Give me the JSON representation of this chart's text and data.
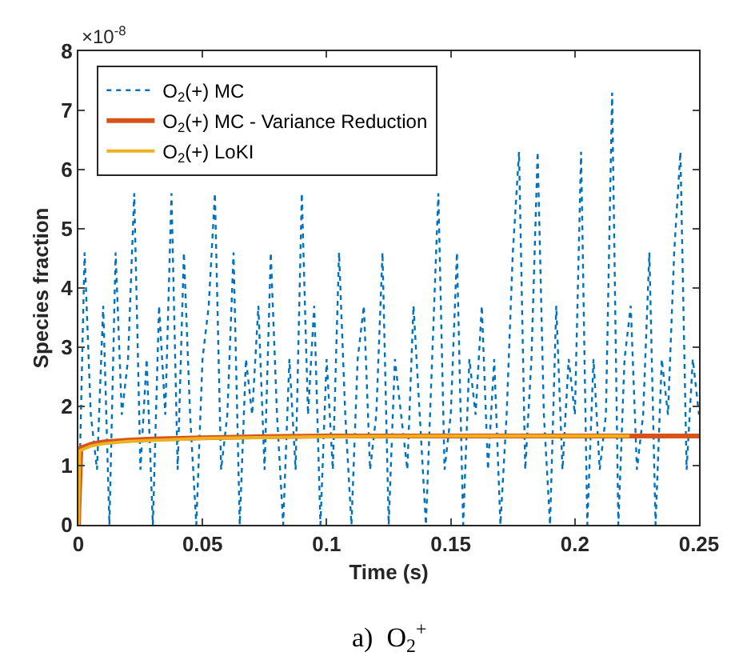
{
  "chart_data": {
    "type": "line",
    "xlabel": "Time (s)",
    "ylabel": "Species fraction",
    "xlim": [
      0,
      0.25
    ],
    "xticks": [
      0,
      0.05,
      0.1,
      0.15,
      0.2,
      0.25
    ],
    "ylim": [
      0,
      8
    ],
    "yticks": [
      0,
      1,
      2,
      3,
      4,
      5,
      6,
      7,
      8
    ],
    "grid": false,
    "legend": "top left",
    "marker": "none",
    "annotations": [
      "×10$^{-8}$",
      "a)  O$_{2}$$^{+}$"
    ],
    "series": [
      {
        "name": "O$_{2}$(+) MC",
        "color": "#0072bd",
        "line_style": "dotted",
        "x": [
          0,
          0.0025,
          0.005,
          0.0075,
          0.01,
          0.0125,
          0.015,
          0.0175,
          0.02,
          0.0225,
          0.025,
          0.0275,
          0.03,
          0.0325,
          0.035,
          0.0375,
          0.04,
          0.0425,
          0.045,
          0.0475,
          0.05,
          0.0525,
          0.055,
          0.0575,
          0.06,
          0.0625,
          0.065,
          0.0675,
          0.07,
          0.0725,
          0.075,
          0.0775,
          0.08,
          0.0825,
          0.085,
          0.0875,
          0.09,
          0.0925,
          0.095,
          0.0975,
          0.1,
          0.1025,
          0.105,
          0.1075,
          0.11,
          0.1125,
          0.115,
          0.1175,
          0.12,
          0.1225,
          0.125,
          0.1275,
          0.13,
          0.1325,
          0.135,
          0.1375,
          0.14,
          0.1425,
          0.145,
          0.1475,
          0.15,
          0.1525,
          0.155,
          0.1575,
          0.16,
          0.1625,
          0.165,
          0.1675,
          0.17,
          0.1725,
          0.175,
          0.1775,
          0.18,
          0.1825,
          0.185,
          0.1875,
          0.19,
          0.1925,
          0.195,
          0.1975,
          0.2,
          0.2025,
          0.205,
          0.2075,
          0.21,
          0.2125,
          0.215,
          0.2175,
          0.22,
          0.2225,
          0.225,
          0.2275,
          0.23,
          0.2325,
          0.235,
          0.2375,
          0.24,
          0.2425,
          0.245,
          0.2475,
          0.25
        ],
        "values": [
          0,
          4.6,
          1.86,
          0.93,
          3.7,
          0,
          4.6,
          1.86,
          2.8,
          5.6,
          0.93,
          2.8,
          0,
          3.7,
          1.86,
          5.6,
          0.93,
          4.6,
          1.86,
          0,
          2.8,
          3.7,
          5.6,
          0.93,
          1.86,
          4.6,
          0,
          2.8,
          1.86,
          3.7,
          0.93,
          4.6,
          1.86,
          0,
          2.8,
          0.93,
          5.6,
          1.86,
          3.7,
          0,
          2.8,
          0.93,
          4.6,
          1.86,
          0,
          2.8,
          3.7,
          0.93,
          1.86,
          4.6,
          0,
          2.8,
          1.86,
          0.93,
          3.7,
          1.86,
          0,
          2.8,
          5.6,
          0.93,
          1.86,
          4.6,
          0,
          2.8,
          1.86,
          3.7,
          0.93,
          2.8,
          0,
          1.86,
          4.6,
          6.3,
          0.93,
          2.8,
          6.3,
          1.86,
          0,
          3.7,
          0.93,
          2.8,
          1.86,
          6.3,
          0,
          2.8,
          0.93,
          1.86,
          7.3,
          0,
          2.8,
          3.7,
          0.93,
          1.86,
          4.6,
          0,
          2.8,
          1.86,
          4.6,
          6.3,
          0.93,
          2.8,
          1.86
        ]
      },
      {
        "name": "O$_{2}$(+) MC - Variance Reduction",
        "color": "#d95319",
        "line_style": "solid",
        "x": [
          0,
          0.001,
          0.005,
          0.01,
          0.02,
          0.03,
          0.05,
          0.075,
          0.1,
          0.125,
          0.15,
          0.175,
          0.2,
          0.225,
          0.25
        ],
        "values": [
          0,
          1.3,
          1.36,
          1.4,
          1.43,
          1.45,
          1.47,
          1.49,
          1.5,
          1.5,
          1.5,
          1.5,
          1.5,
          1.5,
          1.5
        ]
      },
      {
        "name": "O$_{2}$(+) LoKI",
        "color": "#edb120",
        "line_style": "solid",
        "x": [
          0,
          0.0005,
          0.005,
          0.01,
          0.02,
          0.05,
          0.1,
          0.15,
          0.222
        ],
        "values": [
          0,
          1.25,
          1.33,
          1.37,
          1.41,
          1.46,
          1.49,
          1.5,
          1.5
        ]
      }
    ]
  }
}
